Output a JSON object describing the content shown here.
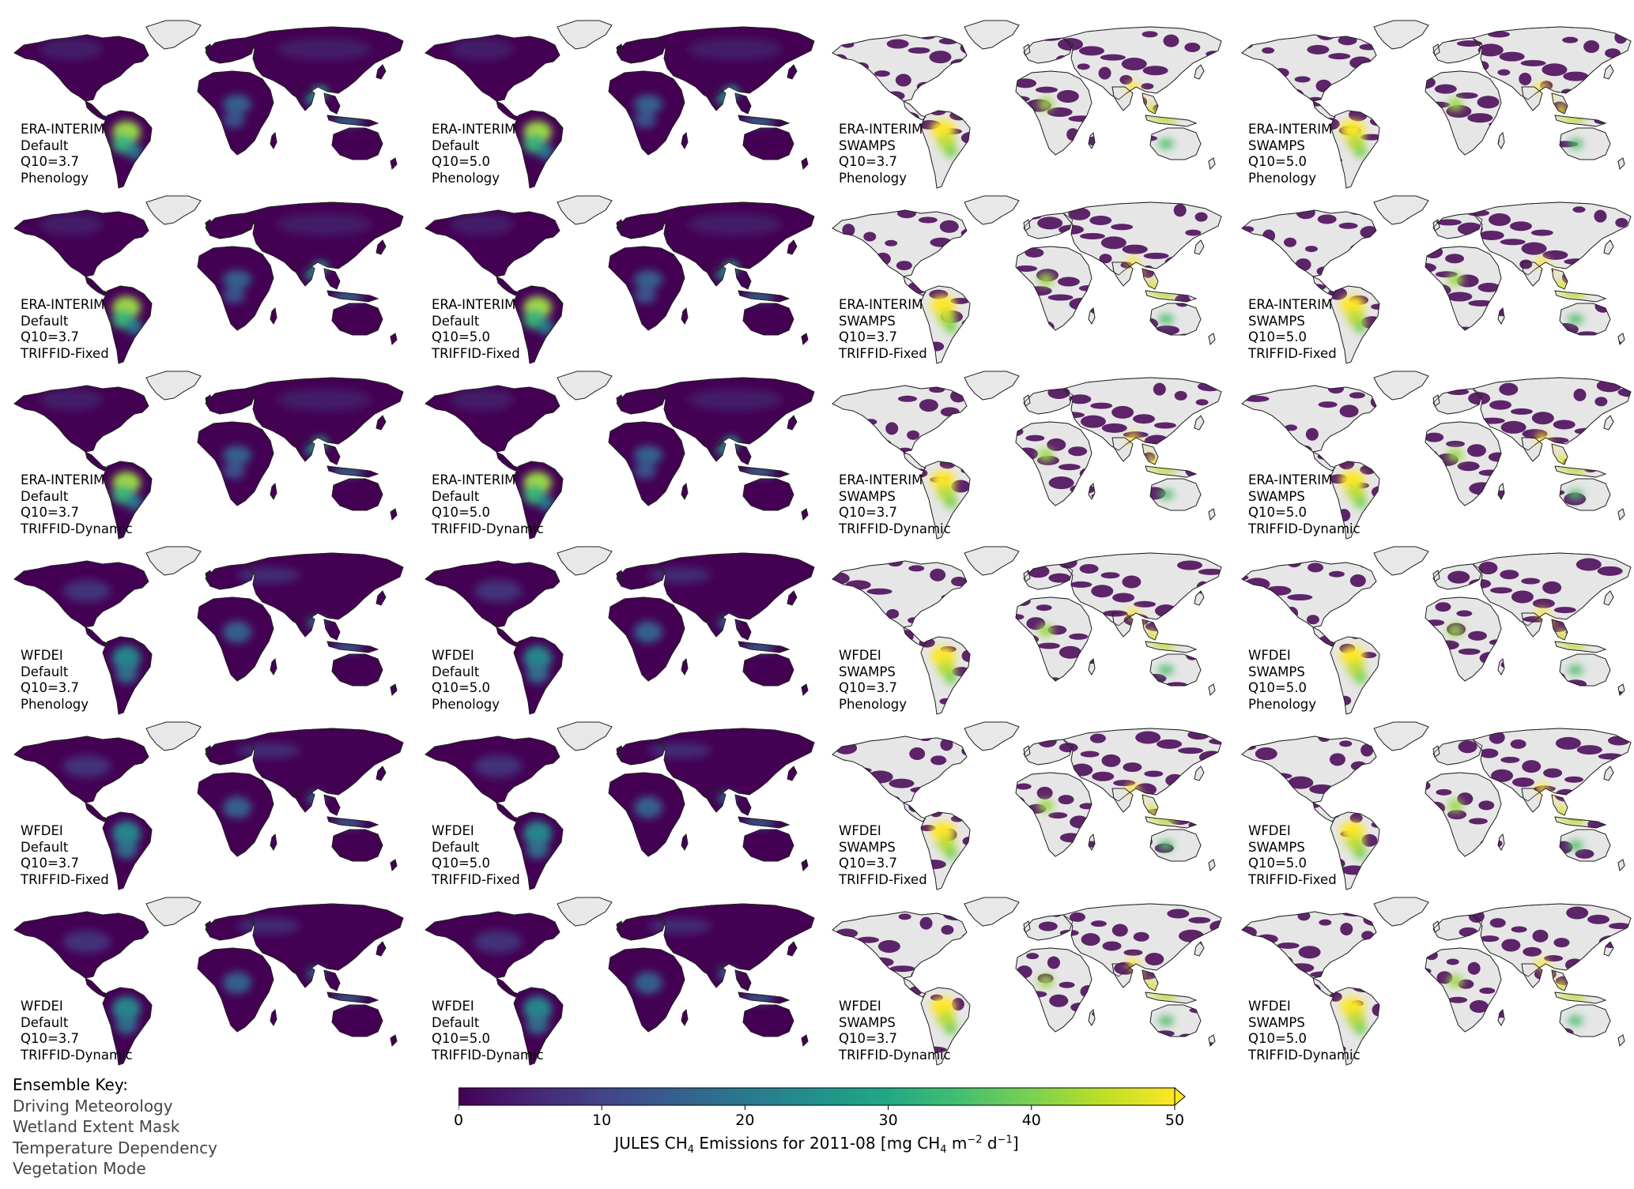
{
  "panels": [
    {
      "lines": [
        "ERA-INTERIM",
        "Default",
        "Q10=3.7",
        "Phenology"
      ],
      "mask": "Default"
    },
    {
      "lines": [
        "ERA-INTERIM",
        "Default",
        "Q10=5.0",
        "Phenology"
      ],
      "mask": "Default"
    },
    {
      "lines": [
        "ERA-INTERIM",
        "SWAMPS",
        "Q10=3.7",
        "Phenology"
      ],
      "mask": "SWAMPS"
    },
    {
      "lines": [
        "ERA-INTERIM",
        "SWAMPS",
        "Q10=5.0",
        "Phenology"
      ],
      "mask": "SWAMPS"
    },
    {
      "lines": [
        "ERA-INTERIM",
        "Default",
        "Q10=3.7",
        "TRIFFID-Fixed"
      ],
      "mask": "Default"
    },
    {
      "lines": [
        "ERA-INTERIM",
        "Default",
        "Q10=5.0",
        "TRIFFID-Fixed"
      ],
      "mask": "Default"
    },
    {
      "lines": [
        "ERA-INTERIM",
        "SWAMPS",
        "Q10=3.7",
        "TRIFFID-Fixed"
      ],
      "mask": "SWAMPS"
    },
    {
      "lines": [
        "ERA-INTERIM",
        "SWAMPS",
        "Q10=5.0",
        "TRIFFID-Fixed"
      ],
      "mask": "SWAMPS"
    },
    {
      "lines": [
        "ERA-INTERIM",
        "Default",
        "Q10=3.7",
        "TRIFFID-Dynamic"
      ],
      "mask": "Default"
    },
    {
      "lines": [
        "ERA-INTERIM",
        "Default",
        "Q10=5.0",
        "TRIFFID-Dynamic"
      ],
      "mask": "Default"
    },
    {
      "lines": [
        "ERA-INTERIM",
        "SWAMPS",
        "Q10=3.7",
        "TRIFFID-Dynamic"
      ],
      "mask": "SWAMPS"
    },
    {
      "lines": [
        "ERA-INTERIM",
        "SWAMPS",
        "Q10=5.0",
        "TRIFFID-Dynamic"
      ],
      "mask": "SWAMPS"
    },
    {
      "lines": [
        "WFDEI",
        "Default",
        "Q10=3.7",
        "Phenology"
      ],
      "mask": "Default"
    },
    {
      "lines": [
        "WFDEI",
        "Default",
        "Q10=5.0",
        "Phenology"
      ],
      "mask": "Default"
    },
    {
      "lines": [
        "WFDEI",
        "SWAMPS",
        "Q10=3.7",
        "Phenology"
      ],
      "mask": "SWAMPS"
    },
    {
      "lines": [
        "WFDEI",
        "SWAMPS",
        "Q10=5.0",
        "Phenology"
      ],
      "mask": "SWAMPS"
    },
    {
      "lines": [
        "WFDEI",
        "Default",
        "Q10=3.7",
        "TRIFFID-Fixed"
      ],
      "mask": "Default"
    },
    {
      "lines": [
        "WFDEI",
        "Default",
        "Q10=5.0",
        "TRIFFID-Fixed"
      ],
      "mask": "Default"
    },
    {
      "lines": [
        "WFDEI",
        "SWAMPS",
        "Q10=3.7",
        "TRIFFID-Fixed"
      ],
      "mask": "SWAMPS"
    },
    {
      "lines": [
        "WFDEI",
        "SWAMPS",
        "Q10=5.0",
        "TRIFFID-Fixed"
      ],
      "mask": "SWAMPS"
    },
    {
      "lines": [
        "WFDEI",
        "Default",
        "Q10=3.7",
        "TRIFFID-Dynamic"
      ],
      "mask": "Default"
    },
    {
      "lines": [
        "WFDEI",
        "Default",
        "Q10=5.0",
        "TRIFFID-Dynamic"
      ],
      "mask": "Default"
    },
    {
      "lines": [
        "WFDEI",
        "SWAMPS",
        "Q10=3.7",
        "TRIFFID-Dynamic"
      ],
      "mask": "SWAMPS"
    },
    {
      "lines": [
        "WFDEI",
        "SWAMPS",
        "Q10=5.0",
        "TRIFFID-Dynamic"
      ],
      "mask": "SWAMPS"
    }
  ],
  "key": {
    "title": "Ensemble Key:",
    "items": [
      "Driving Meteorology",
      "Wetland Extent Mask",
      "Temperature Dependency",
      "Vegetation Mode"
    ]
  },
  "colorbar": {
    "min": 0,
    "max": 50,
    "ticks": [
      "0",
      "10",
      "20",
      "30",
      "40",
      "50"
    ],
    "extend": "max",
    "label_pre": "JULES CH",
    "label_sub": "4",
    "label_mid": " Emissions for 2011-08 [mg CH",
    "label_sub2": "4",
    "label_post": " m",
    "label_sup1": "−2",
    "label_post2": " d",
    "label_sup2": "−1",
    "label_end": "]",
    "colormap": "viridis"
  },
  "colors": {
    "land_base": "#440154",
    "greenland": "#e8e8e8",
    "no_data": "#e6e6e6",
    "coast": "#222222",
    "high": "#fde725"
  }
}
